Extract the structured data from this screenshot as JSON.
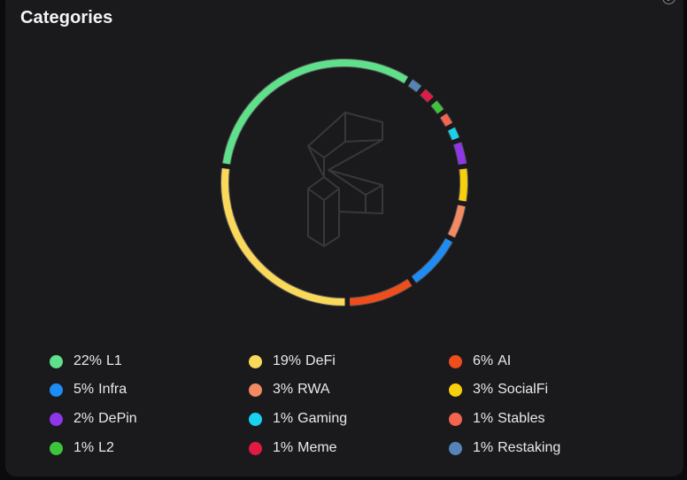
{
  "card": {
    "title": "Categories",
    "info_icon": "info-icon"
  },
  "chart_data": {
    "type": "pie",
    "style": "donut-ring",
    "center_icon": "brand-logo-outline",
    "series": [
      {
        "name": "L1",
        "label": "22%",
        "value": 22,
        "color": "#5fe08a"
      },
      {
        "name": "DeFi",
        "label": "19%",
        "value": 19,
        "color": "#fad85a"
      },
      {
        "name": "AI",
        "label": "6%",
        "value": 6,
        "color": "#f04d1c"
      },
      {
        "name": "Infra",
        "label": "5%",
        "value": 5,
        "color": "#1e8cf5"
      },
      {
        "name": "RWA",
        "label": "3%",
        "value": 3,
        "color": "#f48a62"
      },
      {
        "name": "SocialFi",
        "label": "3%",
        "value": 3,
        "color": "#f8cf0c"
      },
      {
        "name": "DePin",
        "label": "2%",
        "value": 2,
        "color": "#8e36e8"
      },
      {
        "name": "Gaming",
        "label": "1%",
        "value": 1,
        "color": "#18d2ee"
      },
      {
        "name": "Stables",
        "label": "1%",
        "value": 1,
        "color": "#f4644e"
      },
      {
        "name": "L2",
        "label": "1%",
        "value": 1,
        "color": "#3ec43a"
      },
      {
        "name": "Meme",
        "label": "1%",
        "value": 1,
        "color": "#e01a44"
      },
      {
        "name": "Restaking",
        "label": "1%",
        "value": 1,
        "color": "#5585b8"
      }
    ]
  }
}
